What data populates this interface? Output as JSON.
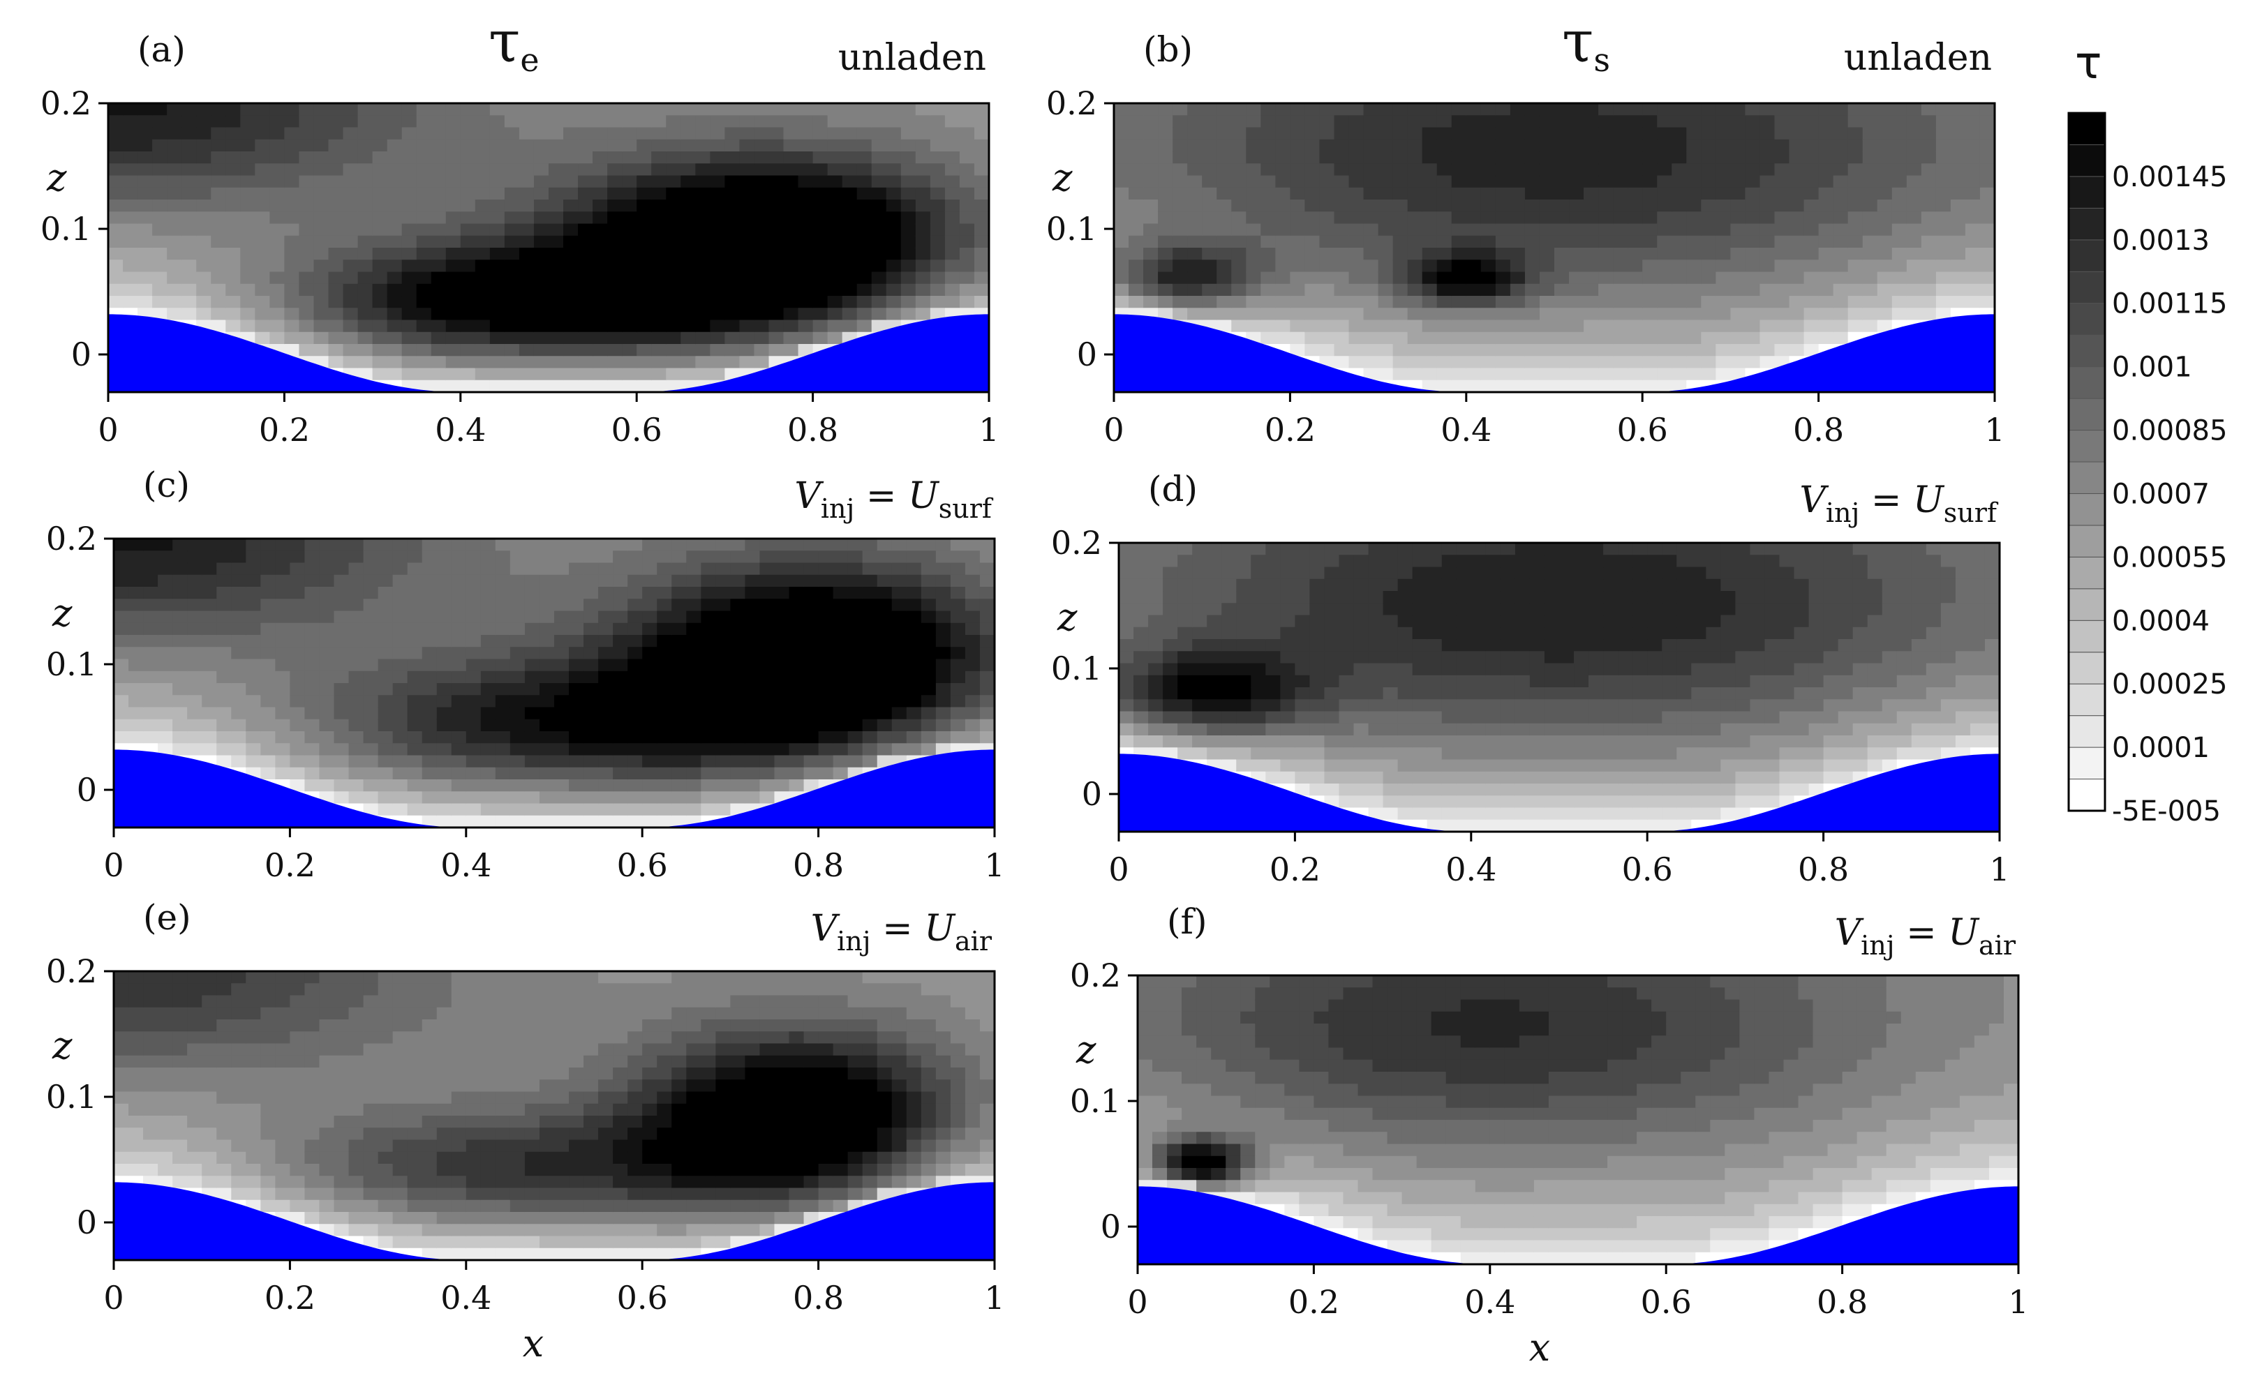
{
  "chart_data": {
    "type": "contour",
    "colorbar": {
      "title": "τ",
      "tick_labels": [
        "0.00145",
        "0.0013",
        "0.00115",
        "0.001",
        "0.00085",
        "0.0007",
        "0.00055",
        "0.0004",
        "0.00025",
        "0.0001",
        "-5E-005"
      ],
      "min": -5e-05,
      "max": 0.0016,
      "levels": 22
    },
    "column_titles": {
      "left": {
        "base": "τ",
        "sub": "e"
      },
      "right": {
        "base": "τ",
        "sub": "s"
      }
    },
    "panels": [
      {
        "id": "a",
        "label": "(a)",
        "condition": "unladen",
        "field": "τe",
        "blobs": [
          {
            "x": 0.75,
            "z": 0.085,
            "amp": 1.0,
            "sx": 0.16,
            "sz": 0.05
          },
          {
            "x": 0.45,
            "z": 0.04,
            "amp": 0.7,
            "sx": 0.18,
            "sz": 0.035
          },
          {
            "x": 0.0,
            "z": 0.2,
            "amp": 0.5,
            "sx": 0.25,
            "sz": 0.06
          }
        ]
      },
      {
        "id": "b",
        "label": "(b)",
        "condition": "unladen",
        "field": "τs",
        "blobs": [
          {
            "x": 0.08,
            "z": 0.06,
            "amp": 0.55,
            "sx": 0.06,
            "sz": 0.02
          },
          {
            "x": 0.4,
            "z": 0.06,
            "amp": 0.5,
            "sx": 0.05,
            "sz": 0.015
          },
          {
            "x": 0.5,
            "z": 0.16,
            "amp": 0.45,
            "sx": 0.35,
            "sz": 0.08
          }
        ]
      },
      {
        "id": "c",
        "label": "(c)",
        "condition": {
          "v": "V",
          "vsub": "inj",
          "eq": "= ",
          "u": "U",
          "usub": "surf"
        },
        "field": "τe",
        "blobs": [
          {
            "x": 0.8,
            "z": 0.1,
            "amp": 0.95,
            "sx": 0.15,
            "sz": 0.055
          },
          {
            "x": 0.5,
            "z": 0.05,
            "amp": 0.55,
            "sx": 0.2,
            "sz": 0.04
          },
          {
            "x": 0.0,
            "z": 0.2,
            "amp": 0.5,
            "sx": 0.25,
            "sz": 0.06
          }
        ]
      },
      {
        "id": "d",
        "label": "(d)",
        "condition": {
          "v": "V",
          "vsub": "inj",
          "eq": "= ",
          "u": "U",
          "usub": "surf"
        },
        "field": "τs",
        "blobs": [
          {
            "x": 0.1,
            "z": 0.08,
            "amp": 0.55,
            "sx": 0.08,
            "sz": 0.025
          },
          {
            "x": 0.5,
            "z": 0.15,
            "amp": 0.48,
            "sx": 0.35,
            "sz": 0.08
          }
        ]
      },
      {
        "id": "e",
        "label": "(e)",
        "condition": {
          "v": "V",
          "vsub": "inj",
          "eq": "= ",
          "u": "U",
          "usub": "air"
        },
        "field": "τe",
        "blobs": [
          {
            "x": 0.78,
            "z": 0.08,
            "amp": 0.85,
            "sx": 0.13,
            "sz": 0.05
          },
          {
            "x": 0.45,
            "z": 0.04,
            "amp": 0.45,
            "sx": 0.2,
            "sz": 0.035
          },
          {
            "x": 0.0,
            "z": 0.2,
            "amp": 0.4,
            "sx": 0.25,
            "sz": 0.06
          }
        ]
      },
      {
        "id": "f",
        "label": "(f)",
        "condition": {
          "v": "V",
          "vsub": "inj",
          "eq": "= ",
          "u": "U",
          "usub": "air"
        },
        "field": "τs",
        "blobs": [
          {
            "x": 0.07,
            "z": 0.05,
            "amp": 0.85,
            "sx": 0.04,
            "sz": 0.015
          },
          {
            "x": 0.4,
            "z": 0.16,
            "amp": 0.42,
            "sx": 0.3,
            "sz": 0.07
          }
        ]
      }
    ],
    "x_axis": {
      "label": "x",
      "range": [
        0,
        1
      ],
      "ticks": [
        "0",
        "0.2",
        "0.4",
        "0.6",
        "0.8",
        "1"
      ]
    },
    "z_axis": {
      "label": "z",
      "range": [
        -0.03,
        0.2
      ],
      "ticks": [
        "0",
        "0.1",
        "0.2"
      ]
    },
    "surface": {
      "color": "#0000ff",
      "profile": "wavy",
      "crest_z": 0.032,
      "trough_z": -0.03
    }
  }
}
